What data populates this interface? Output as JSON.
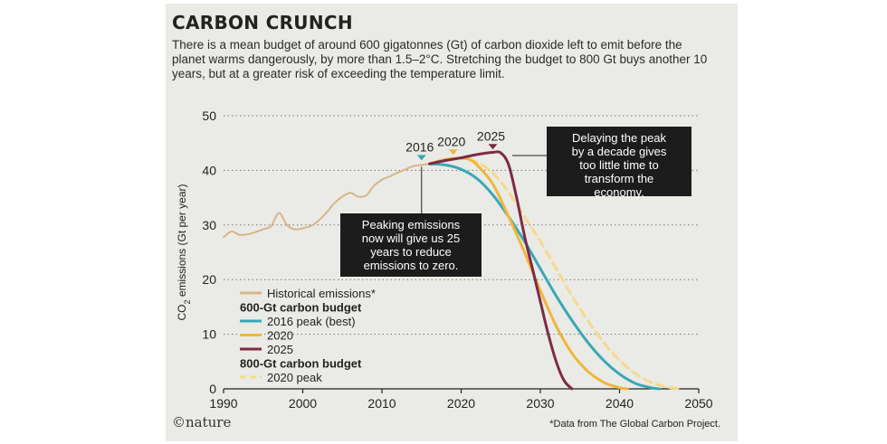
{
  "header": {
    "title": "CARBON CRUNCH",
    "subtitle": "There is a mean budget of around 600 gigatonnes (Gt) of carbon dioxide left to emit before the planet warms dangerously, by more than 1.5–2°C. Stretching the budget to 800 Gt buys another 10 years, but at a greater risk of exceeding the temperature limit."
  },
  "footer": {
    "logo": "©nature",
    "source": "*Data from The Global Carbon Project."
  },
  "chart_data": {
    "type": "line",
    "xlabel": "",
    "ylabel": "CO2 emissions (Gt per year)",
    "xlim": [
      1990,
      2050
    ],
    "ylim": [
      0,
      50
    ],
    "xticks": [
      1990,
      2000,
      2010,
      2020,
      2030,
      2040,
      2050
    ],
    "yticks": [
      0,
      10,
      20,
      30,
      40,
      50
    ],
    "grid": "horizontal dotted",
    "legend_position": "bottom-left",
    "legend": [
      {
        "kind": "item",
        "label": "Historical emissions*",
        "series": "historical"
      },
      {
        "kind": "heading",
        "label": "600-Gt carbon budget"
      },
      {
        "kind": "item",
        "label": "2016 peak (best)",
        "series": "p2016"
      },
      {
        "kind": "item",
        "label": "2020",
        "series": "p2020"
      },
      {
        "kind": "item",
        "label": "2025",
        "series": "p2025"
      },
      {
        "kind": "heading",
        "label": "800-Gt carbon budget"
      },
      {
        "kind": "item",
        "label": "2020 peak",
        "series": "p2020_800"
      }
    ],
    "series": [
      {
        "id": "historical",
        "name": "Historical emissions*",
        "color": "#d9b48a",
        "dashed": false,
        "points": [
          [
            1990,
            27.8
          ],
          [
            1991,
            28.8
          ],
          [
            1992,
            28.2
          ],
          [
            1993,
            28.3
          ],
          [
            1994,
            28.7
          ],
          [
            1995,
            29.2
          ],
          [
            1996,
            29.8
          ],
          [
            1997,
            32.2
          ],
          [
            1998,
            30
          ],
          [
            1999,
            29.2
          ],
          [
            2000,
            29.4
          ],
          [
            2001,
            29.8
          ],
          [
            2002,
            30.8
          ],
          [
            2003,
            32.3
          ],
          [
            2004,
            34
          ],
          [
            2005,
            35.2
          ],
          [
            2006,
            35.9
          ],
          [
            2007,
            35.2
          ],
          [
            2008,
            35.4
          ],
          [
            2009,
            37.2
          ],
          [
            2010,
            38.3
          ],
          [
            2011,
            38.9
          ],
          [
            2012,
            39.6
          ],
          [
            2013,
            40.2
          ],
          [
            2014,
            40.8
          ],
          [
            2015,
            41
          ],
          [
            2016,
            41.2
          ]
        ]
      },
      {
        "id": "p2016",
        "name": "2016 peak (best)",
        "color": "#3aa7b5",
        "dashed": false,
        "points": [
          [
            2016,
            41.2
          ],
          [
            2018,
            41
          ],
          [
            2020,
            40.2
          ],
          [
            2022,
            38.5
          ],
          [
            2024,
            35.5
          ],
          [
            2026,
            31.5
          ],
          [
            2028,
            27
          ],
          [
            2030,
            22
          ],
          [
            2032,
            17
          ],
          [
            2034,
            12.5
          ],
          [
            2036,
            8.5
          ],
          [
            2038,
            5.2
          ],
          [
            2040,
            2.7
          ],
          [
            2042,
            1
          ],
          [
            2044,
            0.2
          ],
          [
            2045,
            0
          ]
        ]
      },
      {
        "id": "p2020",
        "name": "2020",
        "color": "#f0b63a",
        "dashed": false,
        "points": [
          [
            2016,
            41.2
          ],
          [
            2018,
            42
          ],
          [
            2020,
            42.2
          ],
          [
            2021,
            42
          ],
          [
            2022,
            41
          ],
          [
            2024,
            37.5
          ],
          [
            2026,
            31.5
          ],
          [
            2028,
            25
          ],
          [
            2030,
            18
          ],
          [
            2032,
            11.5
          ],
          [
            2034,
            6.5
          ],
          [
            2036,
            3.2
          ],
          [
            2038,
            1.2
          ],
          [
            2040,
            0.2
          ],
          [
            2041,
            0
          ]
        ]
      },
      {
        "id": "p2025",
        "name": "2025",
        "color": "#7d2a47",
        "dashed": false,
        "points": [
          [
            2016,
            41.2
          ],
          [
            2018,
            41.8
          ],
          [
            2020,
            42.3
          ],
          [
            2022,
            42.9
          ],
          [
            2024,
            43.3
          ],
          [
            2025,
            43.2
          ],
          [
            2026,
            41
          ],
          [
            2027,
            35
          ],
          [
            2028,
            28
          ],
          [
            2029,
            22
          ],
          [
            2030,
            16
          ],
          [
            2031,
            10
          ],
          [
            2032,
            5
          ],
          [
            2033,
            1.5
          ],
          [
            2034,
            0
          ]
        ]
      },
      {
        "id": "p2020_800",
        "name": "2020 peak",
        "color": "#f6d98c",
        "dashed": true,
        "points": [
          [
            2016,
            41.2
          ],
          [
            2018,
            42
          ],
          [
            2020,
            42.3
          ],
          [
            2022,
            41.5
          ],
          [
            2024,
            39.5
          ],
          [
            2026,
            36
          ],
          [
            2028,
            31.5
          ],
          [
            2030,
            27
          ],
          [
            2032,
            22
          ],
          [
            2034,
            17
          ],
          [
            2036,
            12.5
          ],
          [
            2038,
            8.5
          ],
          [
            2040,
            5.2
          ],
          [
            2042,
            2.8
          ],
          [
            2044,
            1.2
          ],
          [
            2046,
            0.3
          ],
          [
            2048,
            0
          ]
        ]
      }
    ],
    "peak_markers": [
      {
        "label": "2016",
        "x": 2015,
        "y": 41.5,
        "color": "#3aa7b5"
      },
      {
        "label": "2020",
        "x": 2019,
        "y": 42.5,
        "color": "#f0b63a"
      },
      {
        "label": "2025",
        "x": 2024,
        "y": 43.5,
        "color": "#7d2a47"
      }
    ],
    "annotations": [
      {
        "id": "note-peak-now",
        "text": [
          "Peaking emissions",
          "now will give us 25",
          "years to reduce",
          "emissions to zero."
        ],
        "anchor_x": 2015,
        "anchor_y": 41
      },
      {
        "id": "note-delay",
        "text": [
          "Delaying the peak",
          "by a decade gives",
          "too little time to",
          "transform the",
          "economy."
        ],
        "anchor_x": 2026,
        "anchor_y": 43
      }
    ]
  }
}
